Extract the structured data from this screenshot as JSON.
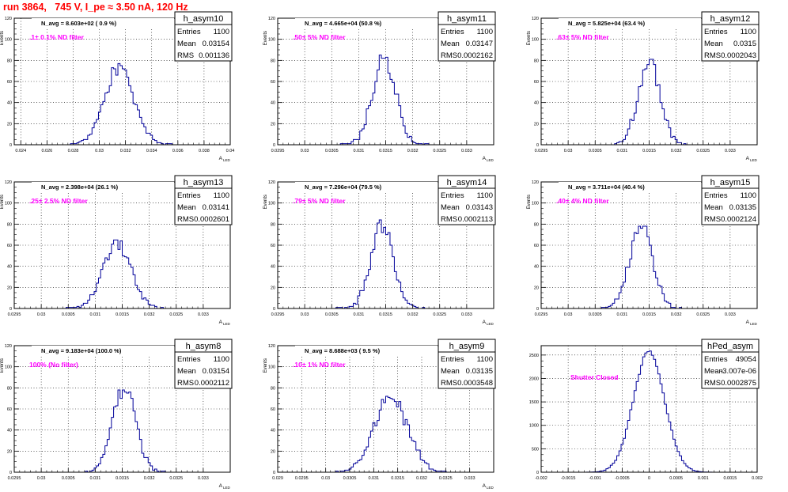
{
  "page": {
    "title": "run 3864,   745 V, I_pe ≈ 3.50 nA, 120 Hz"
  },
  "colors": {
    "hist_line": "#000099",
    "filter_text": "#ff00ff",
    "axis": "#000000",
    "grid": "#000000",
    "title_text": "#ff0000"
  },
  "chart_data": [
    {
      "type": "histogram",
      "title": "h_asym10",
      "nav_label": "N_avg = 8.603e+02 ( 0.9 %)",
      "filter_label": ".1± 0.1% ND filter",
      "ylabel": "Events",
      "xlabel_main": "A",
      "xlabel_sub": "LED",
      "stats": [
        {
          "label": "Entries",
          "value": "1100"
        },
        {
          "label": "Mean",
          "value": "0.03154"
        },
        {
          "label": "RMS",
          "value": "0.001136"
        }
      ],
      "xlim": [
        0.0235,
        0.04
      ],
      "ylim": [
        0,
        120
      ],
      "xticks": [
        0.024,
        0.026,
        0.028,
        0.03,
        0.032,
        0.034,
        0.036,
        0.038,
        0.04
      ],
      "xtick_labels": [
        "0.024",
        "0.026",
        "0.028",
        "0.03",
        "0.032",
        "0.034",
        "0.036",
        "0.038",
        "0.04"
      ],
      "yticks": [
        0,
        20,
        40,
        60,
        80,
        100,
        120
      ],
      "ytick_labels": [
        "0",
        "20",
        "40",
        "60",
        "80",
        "100",
        "120"
      ],
      "mean": 0.03154,
      "sigma": 0.00113,
      "peak": 74,
      "nbins": 100,
      "seed": 3
    },
    {
      "type": "histogram",
      "title": "h_asym11",
      "nav_label": "N_avg = 4.665e+04 (50.8 %)",
      "filter_label": ".50± 5% ND filter",
      "ylabel": "Events",
      "xlabel_main": "A",
      "xlabel_sub": "LED",
      "stats": [
        {
          "label": "Entries",
          "value": "1100"
        },
        {
          "label": "Mean",
          "value": "0.03147"
        },
        {
          "label": "RMS",
          "value": "0.0002162"
        }
      ],
      "xlim": [
        0.0295,
        0.0335
      ],
      "ylim": [
        0,
        120
      ],
      "xticks": [
        0.0295,
        0.03,
        0.0305,
        0.031,
        0.0315,
        0.032,
        0.0325,
        0.033
      ],
      "xtick_labels": [
        "0.0295",
        "0.03",
        "0.0305",
        "0.031",
        "0.0315",
        "0.032",
        "0.0325",
        "0.033"
      ],
      "yticks": [
        0,
        20,
        40,
        60,
        80,
        100,
        120
      ],
      "ytick_labels": [
        "0",
        "20",
        "40",
        "60",
        "80",
        "100",
        "120"
      ],
      "mean": 0.03147,
      "sigma": 0.000216,
      "peak": 82,
      "nbins": 100,
      "seed": 11
    },
    {
      "type": "histogram",
      "title": "h_asym12",
      "nav_label": "N_avg = 5.825e+04 (63.4 %)",
      "filter_label": ".63± 5% ND filter",
      "ylabel": "Events",
      "xlabel_main": "A",
      "xlabel_sub": "LED",
      "stats": [
        {
          "label": "Entries",
          "value": "1100"
        },
        {
          "label": "Mean",
          "value": "0.0315"
        },
        {
          "label": "RMS",
          "value": "0.0002043"
        }
      ],
      "xlim": [
        0.0295,
        0.0335
      ],
      "ylim": [
        0,
        120
      ],
      "xticks": [
        0.0295,
        0.03,
        0.0305,
        0.031,
        0.0315,
        0.032,
        0.0325,
        0.033
      ],
      "xtick_labels": [
        "0.0295",
        "0.03",
        "0.0305",
        "0.031",
        "0.0315",
        "0.032",
        "0.0325",
        "0.033"
      ],
      "yticks": [
        0,
        20,
        40,
        60,
        80,
        100,
        120
      ],
      "ytick_labels": [
        "0",
        "20",
        "40",
        "60",
        "80",
        "100",
        "120"
      ],
      "mean": 0.0315,
      "sigma": 0.000204,
      "peak": 79,
      "nbins": 100,
      "seed": 12
    },
    {
      "type": "histogram",
      "title": "h_asym13",
      "nav_label": "N_avg = 2.398e+04 (26.1 %)",
      "filter_label": ".25± 2.5% ND filter",
      "ylabel": "Events",
      "xlabel_main": "A",
      "xlabel_sub": "LED",
      "stats": [
        {
          "label": "Entries",
          "value": "1100"
        },
        {
          "label": "Mean",
          "value": "0.03141"
        },
        {
          "label": "RMS",
          "value": "0.0002601"
        }
      ],
      "xlim": [
        0.0295,
        0.0335
      ],
      "ylim": [
        0,
        120
      ],
      "xticks": [
        0.0295,
        0.03,
        0.0305,
        0.031,
        0.0315,
        0.032,
        0.0325,
        0.033
      ],
      "xtick_labels": [
        "0.0295",
        "0.03",
        "0.0305",
        "0.031",
        "0.0315",
        "0.032",
        "0.0325",
        "0.033"
      ],
      "yticks": [
        0,
        20,
        40,
        60,
        80,
        100,
        120
      ],
      "ytick_labels": [
        "0",
        "20",
        "40",
        "60",
        "80",
        "100",
        "120"
      ],
      "mean": 0.03141,
      "sigma": 0.00026,
      "peak": 61,
      "nbins": 100,
      "seed": 13
    },
    {
      "type": "histogram",
      "title": "h_asym14",
      "nav_label": "N_avg = 7.296e+04 (79.5 %)",
      "filter_label": ".79± 5% ND filter",
      "ylabel": "Events",
      "xlabel_main": "A",
      "xlabel_sub": "LED",
      "stats": [
        {
          "label": "Entries",
          "value": "1100"
        },
        {
          "label": "Mean",
          "value": "0.03143"
        },
        {
          "label": "RMS",
          "value": "0.0002113"
        }
      ],
      "xlim": [
        0.0295,
        0.0335
      ],
      "ylim": [
        0,
        120
      ],
      "xticks": [
        0.0295,
        0.03,
        0.0305,
        0.031,
        0.0315,
        0.032,
        0.0325,
        0.033
      ],
      "xtick_labels": [
        "0.0295",
        "0.03",
        "0.0305",
        "0.031",
        "0.0315",
        "0.032",
        "0.0325",
        "0.033"
      ],
      "yticks": [
        0,
        20,
        40,
        60,
        80,
        100,
        120
      ],
      "ytick_labels": [
        "0",
        "20",
        "40",
        "60",
        "80",
        "100",
        "120"
      ],
      "mean": 0.03143,
      "sigma": 0.000211,
      "peak": 78,
      "nbins": 100,
      "seed": 14
    },
    {
      "type": "histogram",
      "title": "h_asym15",
      "nav_label": "N_avg = 3.711e+04 (40.4 %)",
      "filter_label": ".40± 4% ND filter",
      "ylabel": "Events",
      "xlabel_main": "A",
      "xlabel_sub": "LED",
      "stats": [
        {
          "label": "Entries",
          "value": "1100"
        },
        {
          "label": "Mean",
          "value": "0.03135"
        },
        {
          "label": "RMS",
          "value": "0.0002124"
        }
      ],
      "xlim": [
        0.0295,
        0.0335
      ],
      "ylim": [
        0,
        120
      ],
      "xticks": [
        0.0295,
        0.03,
        0.0305,
        0.031,
        0.0315,
        0.032,
        0.0325,
        0.033
      ],
      "xtick_labels": [
        "0.0295",
        "0.03",
        "0.0305",
        "0.031",
        "0.0315",
        "0.032",
        "0.0325",
        "0.033"
      ],
      "yticks": [
        0,
        20,
        40,
        60,
        80,
        100,
        120
      ],
      "ytick_labels": [
        "0",
        "20",
        "40",
        "60",
        "80",
        "100",
        "120"
      ],
      "mean": 0.03135,
      "sigma": 0.000212,
      "peak": 80,
      "nbins": 100,
      "seed": 15
    },
    {
      "type": "histogram",
      "title": "h_asym8",
      "nav_label": "N_avg = 9.183e+04 (100.0 %)",
      "filter_label": "100% (No filter)",
      "ylabel": "Events",
      "xlabel_main": "A",
      "xlabel_sub": "LED",
      "stats": [
        {
          "label": "Entries",
          "value": "1100"
        },
        {
          "label": "Mean",
          "value": "0.03154"
        },
        {
          "label": "RMS",
          "value": "0.0002112"
        }
      ],
      "xlim": [
        0.0295,
        0.0335
      ],
      "ylim": [
        0,
        120
      ],
      "xticks": [
        0.0295,
        0.03,
        0.0305,
        0.031,
        0.0315,
        0.032,
        0.0325,
        0.033
      ],
      "xtick_labels": [
        "0.0295",
        "0.03",
        "0.0305",
        "0.031",
        "0.0315",
        "0.032",
        "0.0325",
        "0.033"
      ],
      "yticks": [
        0,
        20,
        40,
        60,
        80,
        100,
        120
      ],
      "ytick_labels": [
        "0",
        "20",
        "40",
        "60",
        "80",
        "100",
        "120"
      ],
      "mean": 0.03154,
      "sigma": 0.000211,
      "peak": 80,
      "nbins": 100,
      "seed": 8
    },
    {
      "type": "histogram",
      "title": "h_asym9",
      "nav_label": "N_avg = 8.688e+03 ( 9.5 %)",
      "filter_label": ".10± 1% ND filter",
      "ylabel": "Events",
      "xlabel_main": "A",
      "xlabel_sub": "LED",
      "stats": [
        {
          "label": "Entries",
          "value": "1100"
        },
        {
          "label": "Mean",
          "value": "0.03135"
        },
        {
          "label": "RMS",
          "value": "0.0003548"
        }
      ],
      "xlim": [
        0.029,
        0.0335
      ],
      "ylim": [
        0,
        120
      ],
      "xticks": [
        0.029,
        0.0295,
        0.03,
        0.0305,
        0.031,
        0.0315,
        0.032,
        0.0325,
        0.033
      ],
      "xtick_labels": [
        "0.029",
        "0.0295",
        "0.03",
        "0.0305",
        "0.031",
        "0.0315",
        "0.032",
        "0.0325",
        "0.033"
      ],
      "yticks": [
        0,
        20,
        40,
        60,
        80,
        100,
        120
      ],
      "ytick_labels": [
        "0",
        "20",
        "40",
        "60",
        "80",
        "100",
        "120"
      ],
      "mean": 0.03135,
      "sigma": 0.000355,
      "peak": 70,
      "nbins": 100,
      "seed": 9
    },
    {
      "type": "histogram",
      "title": "hPed_asym",
      "nav_label": "",
      "filter_label": "Shutter Closed",
      "ylabel": "",
      "xlabel_main": "",
      "xlabel_sub": "",
      "stats": [
        {
          "label": "Entries",
          "value": "49054"
        },
        {
          "label": "Mean",
          "value": "-3.007e-06"
        },
        {
          "label": "RMS",
          "value": "0.0002875"
        }
      ],
      "xlim": [
        -0.002,
        0.002
      ],
      "ylim": [
        0,
        2700
      ],
      "xticks": [
        -0.002,
        -0.0015,
        -0.001,
        -0.0005,
        0,
        0.0005,
        0.001,
        0.0015,
        0.002
      ],
      "xtick_labels": [
        "-0.002",
        "-0.0015",
        "-0.001",
        "-0.0005",
        "0",
        "0.0005",
        "0.001",
        "0.0015",
        "0.002"
      ],
      "yticks": [
        0,
        500,
        1000,
        1500,
        2000,
        2500
      ],
      "ytick_labels": [
        "0",
        "500",
        "1000",
        "1500",
        "2000",
        "2500"
      ],
      "mean": -3e-06,
      "sigma": 0.00029,
      "peak": 2560,
      "nbins": 100,
      "seed": 0
    }
  ]
}
